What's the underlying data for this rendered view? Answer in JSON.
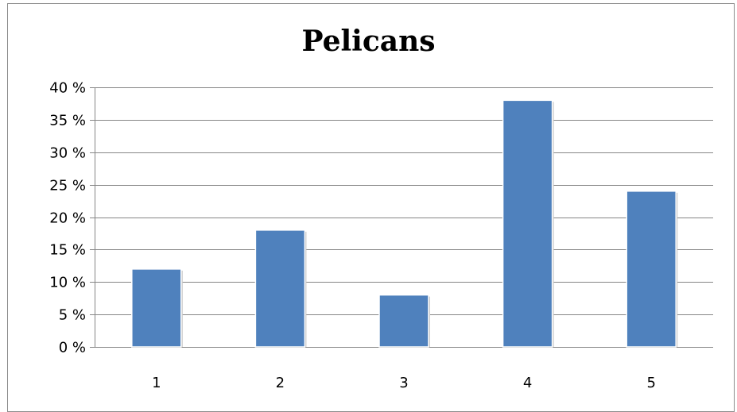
{
  "chart_data": {
    "type": "bar",
    "title": "Pelicans",
    "categories": [
      "1",
      "2",
      "3",
      "4",
      "5"
    ],
    "values": [
      12,
      18,
      8,
      38,
      24
    ],
    "xlabel": "",
    "ylabel": "",
    "ylim": [
      0,
      40
    ],
    "y_ticks": [
      0,
      5,
      10,
      15,
      20,
      25,
      30,
      35,
      40
    ],
    "y_tick_labels": [
      "0 %",
      "5 %",
      "10 %",
      "15 %",
      "20 %",
      "25 %",
      "30 %",
      "35 %",
      "40 %"
    ],
    "grid": true,
    "legend": "none",
    "bar_color": "#4f81bd",
    "grid_color": "#868686"
  }
}
